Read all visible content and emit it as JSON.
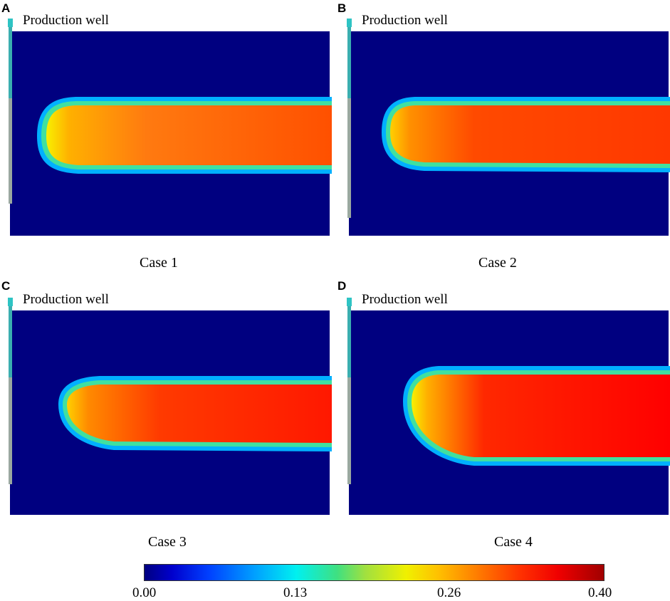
{
  "panels": [
    {
      "letter": "A",
      "well_label": "Production well",
      "case_label": "Case 1"
    },
    {
      "letter": "B",
      "well_label": "Production well",
      "case_label": "Case 2"
    },
    {
      "letter": "C",
      "well_label": "Production well",
      "case_label": "Case 3"
    },
    {
      "letter": "D",
      "well_label": "Production well",
      "case_label": "Case 4"
    }
  ],
  "colorbar": {
    "ticks": [
      "0.00",
      "0.13",
      "0.26",
      "0.40"
    ],
    "min": 0.0,
    "max": 0.4
  },
  "colors": {
    "background_field": "#000080",
    "plume_front": "#ffd000",
    "plume_core": "#ff2a00",
    "well": "#2ec4c4"
  }
}
